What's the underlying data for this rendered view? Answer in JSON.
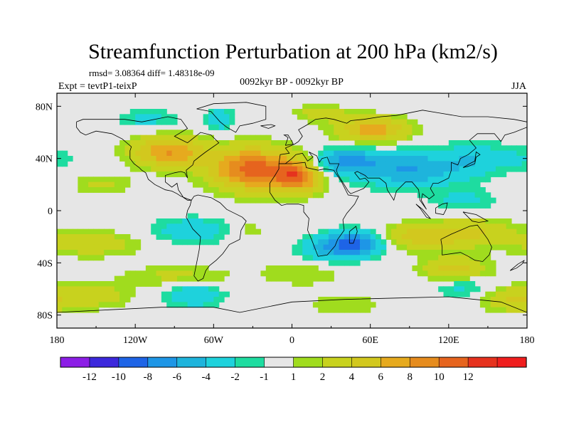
{
  "chart_data": {
    "type": "heatmap",
    "title": "Streamfunction Perturbation at 200 hPa (km2/s)",
    "stats_line": "rmsd= 3.08364 diff= 1.48318e-09",
    "left_label": "Expt = tevtP1-teixP",
    "center_label": "0092kyr BP - 0092kyr BP",
    "right_label": "JJA",
    "x_range": [
      -180,
      180
    ],
    "y_range": [
      -90,
      90
    ],
    "x_ticks": [
      {
        "value": -180,
        "label": "180"
      },
      {
        "value": -120,
        "label": "120W"
      },
      {
        "value": -60,
        "label": "60W"
      },
      {
        "value": 0,
        "label": "0"
      },
      {
        "value": 60,
        "label": "60E"
      },
      {
        "value": 120,
        "label": "120E"
      },
      {
        "value": 180,
        "label": "180"
      }
    ],
    "y_ticks": [
      {
        "value": 80,
        "label": "80N"
      },
      {
        "value": 40,
        "label": "40N"
      },
      {
        "value": 0,
        "label": "0"
      },
      {
        "value": -40,
        "label": "40S"
      },
      {
        "value": -80,
        "label": "80S"
      }
    ],
    "colorbar": {
      "colors": [
        "#8c1ee6",
        "#3c28dc",
        "#1e64e6",
        "#1e96e6",
        "#1eb4dc",
        "#1ed2dc",
        "#1edca0",
        "#e6e6e6",
        "#a0dc1e",
        "#c8d21e",
        "#d2c81e",
        "#e6aa1e",
        "#e68c1e",
        "#e6641e",
        "#e6321e",
        "#f01e1e"
      ],
      "labels": [
        "-12",
        "-10",
        "-8",
        "-6",
        "-4",
        "-2",
        "-1",
        "1",
        "2",
        "4",
        "6",
        "8",
        "10",
        "12"
      ],
      "levels": [
        -12,
        -10,
        -8,
        -6,
        -4,
        -2,
        -1,
        1,
        2,
        4,
        6,
        8,
        10,
        12
      ]
    },
    "field_blobs": [
      {
        "lon": -30,
        "lat": 32,
        "rlon": 32,
        "rlat": 16,
        "amp": 11
      },
      {
        "lon": 5,
        "lat": 26,
        "rlon": 18,
        "rlat": 12,
        "amp": 9
      },
      {
        "lon": -95,
        "lat": 45,
        "rlon": 28,
        "rlat": 12,
        "amp": 8
      },
      {
        "lon": -145,
        "lat": 20,
        "rlon": 22,
        "rlat": 8,
        "amp": 2.5
      },
      {
        "lon": 22,
        "lat": 75,
        "rlon": 18,
        "rlat": 6,
        "amp": 3.5
      },
      {
        "lon": 62,
        "lat": 62,
        "rlon": 28,
        "rlat": 10,
        "amp": 7
      },
      {
        "lon": -55,
        "lat": 70,
        "rlon": 10,
        "rlat": 8,
        "amp": -4
      },
      {
        "lon": -110,
        "lat": 70,
        "rlon": 25,
        "rlat": 8,
        "amp": -2.5
      },
      {
        "lon": 40,
        "lat": 38,
        "rlon": 25,
        "rlat": 10,
        "amp": -6
      },
      {
        "lon": 90,
        "lat": 32,
        "rlon": 40,
        "rlat": 14,
        "amp": -6
      },
      {
        "lon": 140,
        "lat": 40,
        "rlon": 22,
        "rlat": 14,
        "amp": -3
      },
      {
        "lon": 175,
        "lat": 40,
        "rlon": 20,
        "rlat": 10,
        "amp": -2
      },
      {
        "lon": 132,
        "lat": 8,
        "rlon": 25,
        "rlat": 8,
        "amp": -2.5
      },
      {
        "lon": -155,
        "lat": -25,
        "rlon": 40,
        "rlat": 10,
        "amp": 3.5
      },
      {
        "lon": -75,
        "lat": -15,
        "rlon": 35,
        "rlat": 10,
        "amp": -3.5
      },
      {
        "lon": -35,
        "lat": -15,
        "rlon": 18,
        "rlat": 10,
        "amp": 2
      },
      {
        "lon": 50,
        "lat": -25,
        "rlon": 22,
        "rlat": 10,
        "amp": -9
      },
      {
        "lon": 25,
        "lat": -30,
        "rlon": 22,
        "rlat": 10,
        "amp": -4
      },
      {
        "lon": 8,
        "lat": -48,
        "rlon": 35,
        "rlat": 10,
        "amp": 2
      },
      {
        "lon": 100,
        "lat": -20,
        "rlon": 40,
        "rlat": 10,
        "amp": 5
      },
      {
        "lon": 140,
        "lat": -15,
        "rlon": 30,
        "rlat": 10,
        "amp": 3
      },
      {
        "lon": 125,
        "lat": -45,
        "rlon": 25,
        "rlat": 10,
        "amp": 5
      },
      {
        "lon": 130,
        "lat": -58,
        "rlon": 22,
        "rlat": 8,
        "amp": -3
      },
      {
        "lon": -88,
        "lat": -50,
        "rlon": 40,
        "rlat": 8,
        "amp": 2.5
      },
      {
        "lon": -75,
        "lat": -65,
        "rlon": 22,
        "rlat": 9,
        "amp": -4
      },
      {
        "lon": -150,
        "lat": -65,
        "rlon": 28,
        "rlat": 10,
        "amp": 3
      },
      {
        "lon": 170,
        "lat": -68,
        "rlon": 25,
        "rlat": 10,
        "amp": 4
      },
      {
        "lon": 40,
        "lat": -72,
        "rlon": 30,
        "rlat": 8,
        "amp": 2
      }
    ],
    "coastlines": [
      [
        [
          -165,
          68
        ],
        [
          -160,
          70
        ],
        [
          -140,
          70
        ],
        [
          -128,
          70
        ],
        [
          -115,
          68
        ],
        [
          -95,
          72
        ],
        [
          -85,
          70
        ],
        [
          -80,
          63
        ],
        [
          -90,
          57
        ],
        [
          -80,
          52
        ],
        [
          -70,
          60
        ],
        [
          -62,
          58
        ],
        [
          -56,
          52
        ],
        [
          -66,
          45
        ],
        [
          -70,
          42
        ],
        [
          -75,
          38
        ],
        [
          -76,
          35
        ],
        [
          -81,
          31
        ],
        [
          -80,
          25
        ],
        [
          -82,
          29
        ],
        [
          -85,
          30
        ],
        [
          -90,
          29
        ],
        [
          -97,
          27
        ],
        [
          -97,
          22
        ],
        [
          -92,
          18
        ],
        [
          -88,
          21
        ],
        [
          -87,
          16
        ],
        [
          -83,
          10
        ],
        [
          -80,
          8
        ],
        [
          -77,
          8
        ],
        [
          -80,
          9
        ],
        [
          -85,
          11
        ],
        [
          -88,
          13
        ],
        [
          -92,
          15
        ],
        [
          -97,
          16
        ],
        [
          -105,
          20
        ],
        [
          -110,
          24
        ],
        [
          -112,
          29
        ],
        [
          -115,
          31
        ],
        [
          -117,
          33
        ],
        [
          -121,
          36
        ],
        [
          -124,
          40
        ],
        [
          -124,
          46
        ],
        [
          -123,
          49
        ],
        [
          -130,
          55
        ],
        [
          -138,
          59
        ],
        [
          -150,
          61
        ],
        [
          -158,
          58
        ],
        [
          -162,
          60
        ],
        [
          -165,
          64
        ],
        [
          -165,
          68
        ]
      ],
      [
        [
          -75,
          11
        ],
        [
          -72,
          12
        ],
        [
          -62,
          10
        ],
        [
          -55,
          6
        ],
        [
          -50,
          1
        ],
        [
          -44,
          -2
        ],
        [
          -38,
          -5
        ],
        [
          -35,
          -8
        ],
        [
          -39,
          -15
        ],
        [
          -40,
          -22
        ],
        [
          -48,
          -26
        ],
        [
          -53,
          -33
        ],
        [
          -58,
          -38
        ],
        [
          -63,
          -42
        ],
        [
          -66,
          -46
        ],
        [
          -68,
          -52
        ],
        [
          -72,
          -54
        ],
        [
          -75,
          -50
        ],
        [
          -73,
          -40
        ],
        [
          -71,
          -30
        ],
        [
          -70,
          -20
        ],
        [
          -76,
          -14
        ],
        [
          -81,
          -5
        ],
        [
          -80,
          0
        ],
        [
          -78,
          4
        ],
        [
          -77,
          8
        ],
        [
          -75,
          11
        ]
      ],
      [
        [
          -10,
          36
        ],
        [
          -6,
          36
        ],
        [
          0,
          36
        ],
        [
          10,
          37
        ],
        [
          11,
          33
        ],
        [
          20,
          31
        ],
        [
          25,
          32
        ],
        [
          32,
          31
        ],
        [
          34,
          28
        ],
        [
          38,
          22
        ],
        [
          43,
          12
        ],
        [
          51,
          11
        ],
        [
          48,
          5
        ],
        [
          42,
          -2
        ],
        [
          39,
          -7
        ],
        [
          40,
          -15
        ],
        [
          35,
          -22
        ],
        [
          33,
          -27
        ],
        [
          27,
          -34
        ],
        [
          20,
          -35
        ],
        [
          18,
          -30
        ],
        [
          15,
          -22
        ],
        [
          12,
          -15
        ],
        [
          13,
          -6
        ],
        [
          9,
          -1
        ],
        [
          9,
          4
        ],
        [
          5,
          5
        ],
        [
          -4,
          5
        ],
        [
          -8,
          4
        ],
        [
          -13,
          8
        ],
        [
          -17,
          14
        ],
        [
          -17,
          21
        ],
        [
          -13,
          27
        ],
        [
          -10,
          32
        ],
        [
          -10,
          36
        ]
      ],
      [
        [
          -10,
          36
        ],
        [
          -9,
          43
        ],
        [
          -2,
          44
        ],
        [
          -5,
          48
        ],
        [
          2,
          51
        ],
        [
          5,
          53
        ],
        [
          8,
          57
        ],
        [
          5,
          62
        ],
        [
          12,
          66
        ],
        [
          18,
          70
        ],
        [
          26,
          71
        ],
        [
          32,
          70
        ],
        [
          42,
          67
        ],
        [
          45,
          69
        ],
        [
          55,
          70
        ],
        [
          68,
          72
        ],
        [
          80,
          73
        ],
        [
          100,
          77
        ],
        [
          112,
          75
        ],
        [
          130,
          72
        ],
        [
          150,
          72
        ],
        [
          170,
          70
        ],
        [
          180,
          68
        ],
        [
          180,
          64
        ],
        [
          170,
          60
        ],
        [
          163,
          58
        ],
        [
          160,
          53
        ],
        [
          155,
          59
        ],
        [
          142,
          59
        ],
        [
          136,
          54
        ],
        [
          141,
          48
        ],
        [
          135,
          43
        ],
        [
          129,
          40
        ],
        [
          127,
          35
        ],
        [
          122,
          37
        ],
        [
          122,
          31
        ],
        [
          120,
          25
        ],
        [
          112,
          21
        ],
        [
          108,
          21
        ],
        [
          106,
          17
        ],
        [
          109,
          12
        ],
        [
          105,
          9
        ],
        [
          100,
          13
        ],
        [
          99,
          8
        ],
        [
          103,
          1
        ],
        [
          98,
          8
        ],
        [
          97,
          16
        ],
        [
          92,
          22
        ],
        [
          87,
          22
        ],
        [
          80,
          15
        ],
        [
          78,
          8
        ],
        [
          73,
          16
        ],
        [
          72,
          21
        ],
        [
          67,
          25
        ],
        [
          58,
          25
        ],
        [
          56,
          27
        ],
        [
          50,
          30
        ],
        [
          48,
          29
        ],
        [
          52,
          24
        ],
        [
          56,
          25
        ],
        [
          59,
          22
        ],
        [
          55,
          17
        ],
        [
          45,
          13
        ],
        [
          43,
          15
        ],
        [
          35,
          28
        ],
        [
          34,
          31
        ],
        [
          36,
          36
        ],
        [
          29,
          36
        ],
        [
          27,
          41
        ],
        [
          23,
          40
        ],
        [
          21,
          37
        ],
        [
          19,
          42
        ],
        [
          13,
          45
        ],
        [
          16,
          41
        ],
        [
          12,
          38
        ],
        [
          8,
          44
        ],
        [
          3,
          43
        ],
        [
          0,
          40
        ],
        [
          -5,
          36
        ],
        [
          -10,
          36
        ]
      ],
      [
        [
          114,
          -22
        ],
        [
          122,
          -18
        ],
        [
          129,
          -15
        ],
        [
          136,
          -12
        ],
        [
          142,
          -11
        ],
        [
          145,
          -15
        ],
        [
          150,
          -22
        ],
        [
          153,
          -28
        ],
        [
          151,
          -34
        ],
        [
          146,
          -39
        ],
        [
          140,
          -38
        ],
        [
          135,
          -35
        ],
        [
          129,
          -32
        ],
        [
          115,
          -34
        ],
        [
          115,
          -28
        ],
        [
          114,
          -22
        ]
      ],
      [
        [
          -73,
          78
        ],
        [
          -60,
          82
        ],
        [
          -35,
          83
        ],
        [
          -20,
          80
        ],
        [
          -20,
          70
        ],
        [
          -30,
          67
        ],
        [
          -40,
          65
        ],
        [
          -43,
          60
        ],
        [
          -50,
          64
        ],
        [
          -55,
          68
        ],
        [
          -62,
          76
        ],
        [
          -73,
          78
        ]
      ],
      [
        [
          -5,
          50
        ],
        [
          -3,
          56
        ],
        [
          -6,
          58
        ],
        [
          -3,
          58
        ],
        [
          0,
          53
        ],
        [
          1,
          51
        ],
        [
          -5,
          50
        ]
      ],
      [
        [
          131,
          33
        ],
        [
          135,
          34
        ],
        [
          140,
          36
        ],
        [
          141,
          41
        ],
        [
          144,
          43
        ],
        [
          141,
          45
        ],
        [
          140,
          38
        ],
        [
          136,
          36
        ],
        [
          131,
          33
        ]
      ],
      [
        [
          44,
          -25
        ],
        [
          47,
          -25
        ],
        [
          50,
          -16
        ],
        [
          49,
          -12
        ],
        [
          44,
          -16
        ],
        [
          44,
          -25
        ]
      ],
      [
        [
          95,
          5
        ],
        [
          100,
          1
        ],
        [
          106,
          -6
        ],
        [
          103,
          -5
        ],
        [
          98,
          2
        ],
        [
          95,
          5
        ]
      ],
      [
        [
          110,
          2
        ],
        [
          115,
          5
        ],
        [
          119,
          6
        ],
        [
          118,
          1
        ],
        [
          116,
          -3
        ],
        [
          110,
          -2
        ],
        [
          110,
          2
        ]
      ],
      [
        [
          131,
          -1
        ],
        [
          141,
          -3
        ],
        [
          150,
          -8
        ],
        [
          143,
          -9
        ],
        [
          138,
          -8
        ],
        [
          131,
          -1
        ]
      ],
      [
        [
          173,
          -41
        ],
        [
          178,
          -38
        ],
        [
          176,
          -41
        ],
        [
          172,
          -44
        ],
        [
          167,
          -46
        ],
        [
          173,
          -41
        ]
      ],
      [
        [
          -24,
          65
        ],
        [
          -16,
          66
        ],
        [
          -13,
          65
        ],
        [
          -18,
          63
        ],
        [
          -24,
          65
        ]
      ],
      [
        [
          -180,
          -78
        ],
        [
          -140,
          -76
        ],
        [
          -100,
          -74
        ],
        [
          -60,
          -74
        ],
        [
          -40,
          -78
        ],
        [
          0,
          -70
        ],
        [
          40,
          -68
        ],
        [
          80,
          -67
        ],
        [
          120,
          -66
        ],
        [
          160,
          -70
        ],
        [
          180,
          -78
        ]
      ]
    ]
  }
}
